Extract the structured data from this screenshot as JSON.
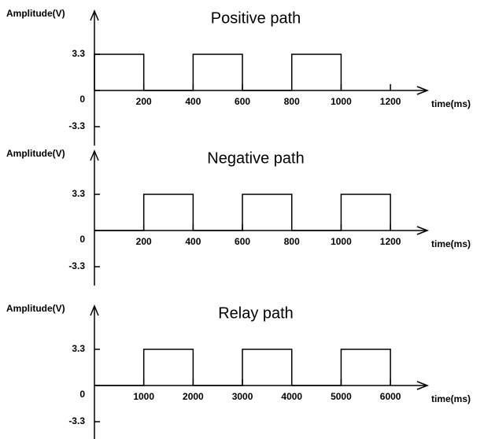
{
  "chart_data": [
    {
      "type": "line",
      "title": "Positive path",
      "y_label": "Amplitude(V)",
      "x_label": "time(ms)",
      "x": [
        0,
        0,
        200,
        200,
        400,
        400,
        600,
        600,
        800,
        800,
        1000,
        1000
      ],
      "series": [
        {
          "color": "#000000",
          "values": [
            0,
            3.3,
            3.3,
            0,
            0,
            3.3,
            3.3,
            0,
            0,
            3.3,
            3.3,
            0
          ]
        }
      ],
      "xlim": [
        0,
        1340
      ],
      "xticks": [
        200,
        400,
        600,
        800,
        1000,
        1200
      ],
      "ylim": [
        -3.3,
        3.3
      ],
      "yticks": [
        3.3,
        0,
        -3.3
      ]
    },
    {
      "type": "line",
      "title": "Negative path",
      "y_label": "Amplitude(V)",
      "x_label": "time(ms)",
      "x": [
        0,
        200,
        200,
        400,
        400,
        600,
        600,
        800,
        800,
        1000,
        1000,
        1200,
        1200
      ],
      "series": [
        {
          "color": "#000000",
          "values": [
            0,
            0,
            3.3,
            3.3,
            0,
            0,
            3.3,
            3.3,
            0,
            0,
            3.3,
            3.3,
            0
          ]
        }
      ],
      "xlim": [
        0,
        1340
      ],
      "xticks": [
        200,
        400,
        600,
        800,
        1000,
        1200
      ],
      "ylim": [
        -3.3,
        3.3
      ],
      "yticks": [
        3.3,
        0,
        -3.3
      ]
    },
    {
      "type": "line",
      "title": "Relay path",
      "y_label": "Amplitude(V)",
      "x_label": "time(ms)",
      "x": [
        0,
        1000,
        1000,
        2000,
        2000,
        3000,
        3000,
        4000,
        4000,
        5000,
        5000,
        6000,
        6000
      ],
      "series": [
        {
          "color": "#000000",
          "values": [
            0,
            0,
            3.3,
            3.3,
            0,
            0,
            3.3,
            3.3,
            0,
            0,
            3.3,
            3.3,
            0
          ]
        }
      ],
      "xlim": [
        0,
        6700
      ],
      "xticks": [
        1000,
        2000,
        3000,
        4000,
        5000,
        6000
      ],
      "ylim": [
        -3.3,
        3.3
      ],
      "yticks": [
        3.3,
        0,
        -3.3
      ]
    }
  ]
}
